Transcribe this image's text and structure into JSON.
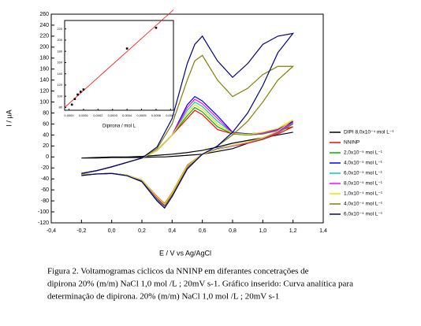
{
  "chart_data": [
    {
      "type": "line",
      "xlabel": "E / V vs Ag/AgCl",
      "ylabel": "I / μA",
      "xlim": [
        -0.4,
        1.4
      ],
      "xticks": [
        {
          "value": -0.4,
          "label": "-0,4"
        },
        {
          "value": -0.2,
          "label": "-0,2"
        },
        {
          "value": 0,
          "label": "0,0"
        },
        {
          "value": 0.2,
          "label": "0,2"
        },
        {
          "value": 0.4,
          "label": "0,4"
        },
        {
          "value": 0.6,
          "label": "0,6"
        },
        {
          "value": 0.8,
          "label": "0,8"
        },
        {
          "value": 1.0,
          "label": "1,0"
        },
        {
          "value": 1.2,
          "label": "1,2"
        },
        {
          "value": 1.4,
          "label": "1,4"
        }
      ],
      "ylim": [
        -120,
        260
      ],
      "yticks": [
        -120,
        -100,
        -80,
        -60,
        -40,
        -20,
        0,
        20,
        40,
        60,
        80,
        100,
        120,
        140,
        160,
        180,
        200,
        220,
        240,
        260
      ],
      "x": [
        -0.2,
        -0.1,
        0,
        0.1,
        0.2,
        0.3,
        0.4,
        0.5,
        0.55,
        0.6,
        0.7,
        0.8,
        0.9,
        1.0,
        1.1,
        1.2,
        1.1,
        1.0,
        0.9,
        0.8,
        0.7,
        0.6,
        0.5,
        0.4,
        0.35,
        0.3,
        0.2,
        0.1,
        0,
        -0.1,
        -0.2
      ],
      "series": [
        {
          "name": "DIPI 8,0x10⁻⁴ mol L⁻¹",
          "color": "#000000",
          "values": [
            -2,
            -1,
            0,
            0,
            1,
            3,
            5,
            8,
            10,
            12,
            18,
            25,
            30,
            35,
            40,
            45,
            40,
            35,
            25,
            15,
            10,
            5,
            3,
            1,
            0,
            0,
            -1,
            -1,
            -1,
            -2,
            -2
          ]
        },
        {
          "name": "NNINP",
          "color": "#ff0000",
          "values": [
            -30,
            -25,
            -18,
            -10,
            -2,
            12,
            40,
            70,
            85,
            77,
            50,
            42,
            40,
            42,
            48,
            55,
            42,
            32,
            25,
            20,
            14,
            5,
            -15,
            -65,
            -85,
            -72,
            -42,
            -33,
            -30,
            -31,
            -32
          ]
        },
        {
          "name": "2,0x10⁻⁵ mol L⁻¹",
          "color": "#00b000",
          "values": [
            -30,
            -25,
            -18,
            -10,
            -2,
            12,
            40,
            75,
            90,
            82,
            55,
            42,
            40,
            42,
            48,
            60,
            44,
            33,
            26,
            20,
            14,
            5,
            -16,
            -66,
            -86,
            -73,
            -42,
            -33,
            -30,
            -31,
            -32
          ]
        },
        {
          "name": "4,0x10⁻⁵ mol L⁻¹",
          "color": "#0000ff",
          "values": [
            -30,
            -25,
            -18,
            -10,
            -2,
            12,
            40,
            95,
            110,
            102,
            75,
            45,
            42,
            44,
            50,
            65,
            46,
            35,
            27,
            21,
            15,
            5,
            -17,
            -68,
            -88,
            -75,
            -43,
            -34,
            -30,
            -31,
            -32
          ]
        },
        {
          "name": "6,0x10⁻⁵ mol L⁻¹",
          "color": "#00c8c8",
          "values": [
            -30,
            -25,
            -18,
            -10,
            -2,
            12,
            40,
            85,
            100,
            92,
            65,
            44,
            41,
            43,
            49,
            62,
            45,
            34,
            26,
            20,
            14,
            5,
            -16,
            -67,
            -87,
            -74,
            -42,
            -33,
            -30,
            -31,
            -32
          ]
        },
        {
          "name": "8,0x10⁻⁵ mol L⁻¹",
          "color": "#ff00ff",
          "values": [
            -30,
            -25,
            -18,
            -10,
            -2,
            12,
            40,
            90,
            105,
            97,
            70,
            44,
            41,
            43,
            49,
            63,
            45,
            34,
            26,
            20,
            14,
            5,
            -16,
            -67,
            -87,
            -74,
            -42,
            -33,
            -30,
            -31,
            -32
          ]
        },
        {
          "name": "1,0x10⁻⁴ mol L⁻¹",
          "color": "#e6e600",
          "values": [
            -30,
            -25,
            -18,
            -10,
            -2,
            12,
            40,
            80,
            95,
            87,
            60,
            43,
            41,
            45,
            52,
            68,
            47,
            35,
            27,
            21,
            14,
            5,
            -16,
            -66,
            -86,
            -73,
            -42,
            -33,
            -30,
            -31,
            -32
          ]
        },
        {
          "name": "4,0x10⁻⁴ mol L⁻¹",
          "color": "#808000",
          "values": [
            -30,
            -25,
            -18,
            -10,
            -2,
            15,
            60,
            140,
            175,
            185,
            140,
            110,
            125,
            150,
            165,
            165,
            140,
            100,
            65,
            40,
            20,
            5,
            -20,
            -70,
            -90,
            -78,
            -45,
            -34,
            -30,
            -31,
            -33
          ]
        },
        {
          "name": "6,0x10⁻⁴ mol L⁻¹",
          "color": "#000080",
          "values": [
            -30,
            -25,
            -18,
            -10,
            -2,
            18,
            70,
            170,
            205,
            220,
            175,
            145,
            170,
            205,
            220,
            225,
            190,
            130,
            80,
            45,
            20,
            5,
            -22,
            -72,
            -93,
            -80,
            -45,
            -34,
            -30,
            -31,
            -34
          ]
        }
      ]
    },
    {
      "type": "scatter",
      "xlabel": "Dipirona / mol L",
      "xlim": [
        -3e-05,
        0.00072
      ],
      "xticks": [
        {
          "value": 0,
          "label": "0,0000"
        },
        {
          "value": 0.0001,
          "label": "0,0001"
        },
        {
          "value": 0.0002,
          "label": "0,0002"
        },
        {
          "value": 0.0003,
          "label": "0,0003"
        },
        {
          "value": 0.0004,
          "label": "0,0004"
        },
        {
          "value": 0.0005,
          "label": "0,0005"
        },
        {
          "value": 0.0006,
          "label": "0,0006"
        },
        {
          "value": 0.0007,
          "label": "0,0007"
        }
      ],
      "ylim": [
        75,
        235
      ],
      "yticks": [
        80,
        100,
        120,
        140,
        160,
        180,
        200,
        220
      ],
      "color": "#000000",
      "fit_color": "#ff0000",
      "x": [
        2e-05,
        4e-05,
        6e-05,
        8e-05,
        0.0001,
        0.0004,
        0.0006
      ],
      "values": [
        85,
        95,
        103,
        108,
        112,
        185,
        222
      ]
    }
  ],
  "caption": [
    "Figura 2. Voltamogramas cíclicos da NNINP em diferantes concetrações de",
    "dipirona  20% (m/m)  NaCl 1,0 mol /L ; 20mV s-1. Gráfico inserido:  Curva analítica para",
    "determinação de dipirona. 20% (m/m)  NaCl 1,0 mol /L ; 20mV s-1"
  ]
}
